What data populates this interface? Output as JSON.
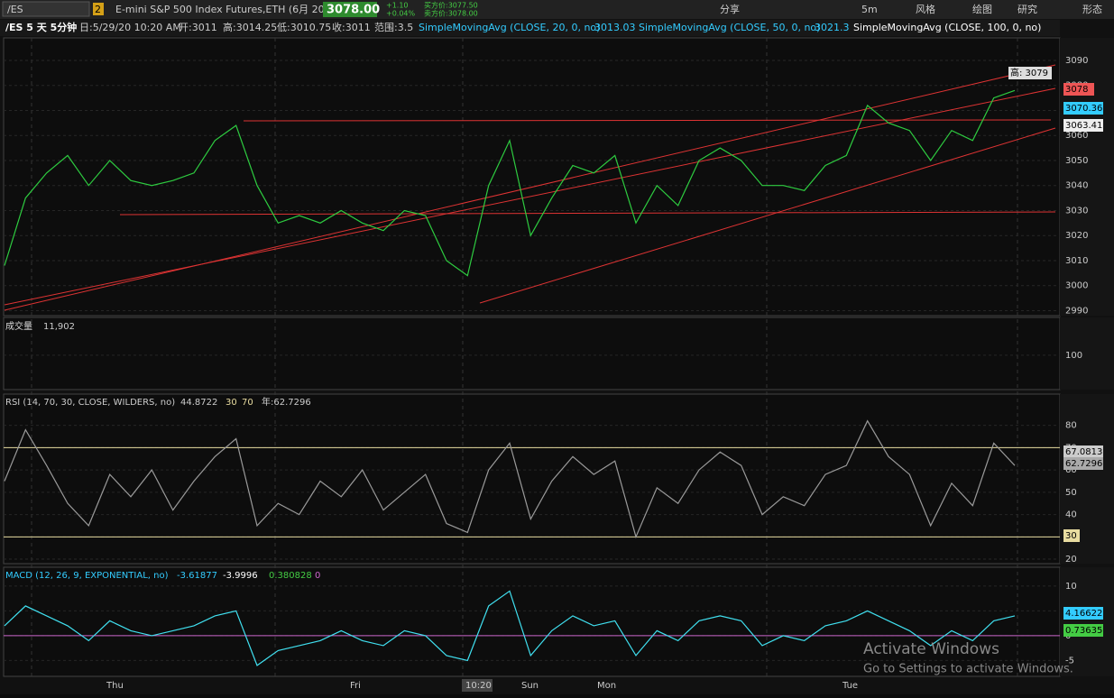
{
  "toolbar": {
    "symbol": "/ES",
    "badge": "2",
    "description": "E-mini S&P 500 Index Futures,ETH (6月 20)",
    "last": "3078.00",
    "change": "+1.10",
    "change_pct": "+0.04%",
    "bid": "买方价:3077.50",
    "ask": "卖方价:3078.00",
    "buttons": [
      "分享",
      "5m",
      "风格",
      "绘图",
      "研究",
      "形态"
    ]
  },
  "header": {
    "symbol_period": "/ES 5 天 5分钟",
    "date": "日:5/29/20 10:20 AM",
    "open": "开:3011",
    "high": "高:3014.25",
    "low": "低:3010.75",
    "close": "收:3011",
    "range": "范围:3.5",
    "sma20": "SimpleMovingAvg (CLOSE, 20, 0, no)",
    "sma20_value": "3013.03",
    "sma50": "SimpleMovingAvg (CLOSE, 50, 0, no)",
    "sma50_value": "3021.3",
    "sma100": "SimpleMovingAvg (CLOSE, 100, 0, no)"
  },
  "price": {
    "ylim": [
      2988,
      3099
    ],
    "yticks": [
      2990,
      3000,
      3010,
      3020,
      3030,
      3040,
      3050,
      3060,
      3070,
      3080,
      3090
    ],
    "color": "#2ecc40",
    "values": [
      3008,
      3035,
      3045,
      3052,
      3040,
      3050,
      3042,
      3040,
      3042,
      3045,
      3058,
      3064,
      3040,
      3025,
      3028,
      3025,
      3030,
      3025,
      3022,
      3030,
      3028,
      3010,
      3004,
      3040,
      3058,
      3020,
      3035,
      3048,
      3045,
      3052,
      3025,
      3040,
      3032,
      3050,
      3055,
      3050,
      3040,
      3040,
      3038,
      3048,
      3052,
      3072,
      3065,
      3062,
      3050,
      3062,
      3058,
      3075,
      3078
    ],
    "high_label": "高: 3079",
    "last_label": "3078",
    "sma20_label": "3070.36",
    "sma100_label": "3063.41"
  },
  "volume": {
    "title": "成交量",
    "value": "11,902",
    "ylim": [
      0,
      210
    ],
    "yticks": [
      100
    ]
  },
  "rsi": {
    "title": "RSI (14, 70, 30, CLOSE, WILDERS, no)",
    "value": "44.8722",
    "oversold": 30,
    "overbought": 70,
    "year_label": "年:62.7296",
    "ylim": [
      18,
      94
    ],
    "yticks": [
      20,
      30,
      40,
      50,
      60,
      70,
      80
    ],
    "color": "#9a9a9a",
    "values": [
      55,
      78,
      62,
      45,
      35,
      58,
      48,
      60,
      42,
      55,
      66,
      74,
      35,
      45,
      40,
      55,
      48,
      60,
      42,
      50,
      58,
      36,
      32,
      60,
      72,
      38,
      55,
      66,
      58,
      64,
      30,
      52,
      45,
      60,
      68,
      62,
      40,
      48,
      44,
      58,
      62,
      82,
      66,
      58,
      35,
      54,
      44,
      72,
      62
    ],
    "label_a": "67.0813",
    "label_b": "62.7296",
    "label_c": "30"
  },
  "macd": {
    "title": "MACD (12, 26, 9, EXPONENTIAL, no)",
    "value": "-3.61877",
    "avg": "-3.9996",
    "diff": "0.380828",
    "zero": "0",
    "ylim": [
      -8.2,
      13.8
    ],
    "yticks": [
      10,
      5,
      0,
      -5
    ],
    "color": "#40e0f0",
    "values": [
      2,
      6,
      4,
      2,
      -1,
      3,
      1,
      0,
      1,
      2,
      4,
      5,
      -6,
      -3,
      -2,
      -1,
      1,
      -1,
      -2,
      1,
      0,
      -4,
      -5,
      6,
      9,
      -4,
      1,
      4,
      2,
      3,
      -4,
      1,
      -1,
      3,
      4,
      3,
      -2,
      0,
      -1,
      2,
      3,
      5,
      3,
      1,
      -2,
      1,
      -1,
      3,
      4
    ],
    "label_a": "4.16622",
    "label_b": "0.73635"
  },
  "xaxis": {
    "labels": [
      "Thu",
      "Fri",
      "10:20",
      "Sun",
      "Mon",
      "Tue"
    ]
  },
  "watermark": {
    "line1": "Activate Windows",
    "line2": "Go to Settings to activate Windows."
  }
}
